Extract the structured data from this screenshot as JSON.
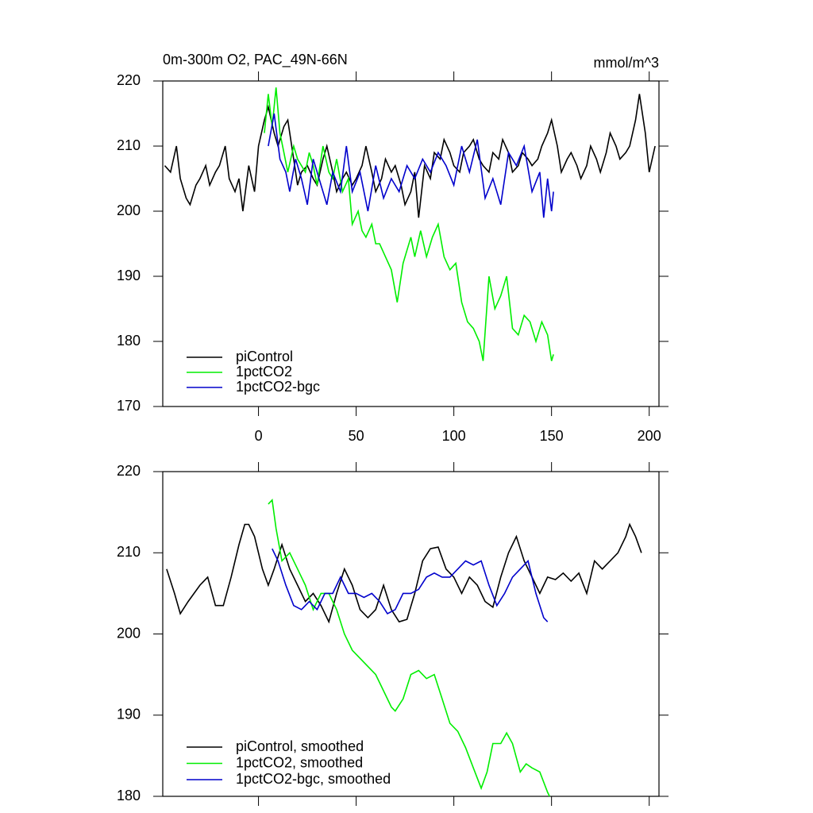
{
  "chart_data": [
    {
      "type": "line",
      "title": "0m-300m O2, PAC_49N-66N",
      "units": "mmol/m^3",
      "xlim": [
        -49,
        205
      ],
      "xticks": [
        0,
        50,
        100,
        150,
        200
      ],
      "ylim": [
        170,
        220
      ],
      "yticks": [
        170,
        180,
        190,
        200,
        210,
        220
      ],
      "legend": "lower left",
      "series": [
        {
          "name": "piControl",
          "color": "#000000",
          "x": [
            -48,
            -45,
            -42,
            -40,
            -37,
            -35,
            -32,
            -30,
            -27,
            -25,
            -22,
            -20,
            -17,
            -15,
            -12,
            -10,
            -8,
            -5,
            -2,
            0,
            3,
            5,
            8,
            10,
            13,
            15,
            18,
            20,
            22,
            25,
            28,
            30,
            33,
            35,
            38,
            40,
            43,
            45,
            48,
            50,
            53,
            55,
            58,
            60,
            63,
            65,
            68,
            70,
            73,
            75,
            78,
            80,
            82,
            85,
            88,
            90,
            93,
            95,
            98,
            100,
            103,
            105,
            108,
            110,
            113,
            115,
            118,
            120,
            123,
            125,
            128,
            130,
            133,
            135,
            138,
            140,
            143,
            145,
            148,
            150,
            153,
            155,
            158,
            160,
            163,
            165,
            168,
            170,
            173,
            175,
            178,
            180,
            183,
            185,
            188,
            190,
            193,
            195,
            198,
            200,
            203
          ],
          "values": [
            207,
            206,
            210,
            205,
            202,
            201,
            204,
            205,
            207,
            204,
            206,
            207,
            210,
            205,
            203,
            205,
            200,
            207,
            203,
            210,
            214,
            216,
            212,
            210,
            213,
            214,
            208,
            204,
            206,
            207,
            205,
            204,
            208,
            210,
            206,
            203,
            205,
            206,
            204,
            205,
            207,
            210,
            206,
            203,
            205,
            208,
            206,
            207,
            204,
            201,
            203,
            206,
            199,
            207,
            205,
            209,
            208,
            211,
            209,
            207,
            206,
            209,
            210,
            211,
            208,
            207,
            206,
            209,
            208,
            211,
            209,
            206,
            207,
            209,
            208,
            207,
            208,
            210,
            212,
            214,
            210,
            206,
            208,
            209,
            207,
            205,
            207,
            210,
            208,
            206,
            209,
            212,
            210,
            208,
            209,
            210,
            214,
            218,
            212,
            206,
            210
          ]
        },
        {
          "name": "1pctCO2",
          "color": "#00ee00",
          "x": [
            3,
            5,
            7,
            9,
            11,
            13,
            15,
            18,
            20,
            22,
            24,
            26,
            28,
            30,
            33,
            36,
            38,
            40,
            43,
            46,
            48,
            51,
            53,
            55,
            58,
            60,
            62,
            65,
            68,
            71,
            74,
            76,
            78,
            80,
            83,
            86,
            89,
            92,
            95,
            98,
            101,
            104,
            107,
            110,
            113,
            115,
            118,
            121,
            124,
            127,
            130,
            133,
            136,
            139,
            142,
            145,
            148,
            150,
            151
          ],
          "values": [
            212,
            218,
            213,
            219,
            212,
            209,
            206,
            210,
            208,
            207,
            206,
            209,
            207,
            204,
            210,
            206,
            205,
            208,
            203,
            205,
            198,
            200,
            197,
            196,
            198,
            195,
            195,
            193,
            191,
            186,
            192,
            194,
            196,
            193,
            197,
            193,
            196,
            198,
            193,
            191,
            192,
            186,
            183,
            182,
            180,
            177,
            190,
            185,
            187,
            190,
            182,
            181,
            184,
            183,
            180,
            183,
            181,
            177,
            178
          ]
        },
        {
          "name": "1pctCO2-bgc",
          "color": "#0000cc",
          "x": [
            5,
            8,
            11,
            14,
            16,
            19,
            22,
            25,
            28,
            31,
            35,
            38,
            42,
            45,
            48,
            52,
            56,
            60,
            64,
            68,
            72,
            76,
            80,
            84,
            88,
            92,
            96,
            100,
            104,
            108,
            112,
            116,
            120,
            124,
            128,
            132,
            136,
            140,
            144,
            146,
            148,
            150,
            151
          ],
          "values": [
            210,
            215,
            208,
            206,
            203,
            208,
            205,
            201,
            208,
            205,
            201,
            206,
            203,
            210,
            203,
            206,
            200,
            207,
            202,
            205,
            203,
            207,
            205,
            208,
            206,
            209,
            207,
            204,
            210,
            206,
            211,
            202,
            205,
            201,
            209,
            207,
            210,
            203,
            206,
            199,
            205,
            200,
            203
          ]
        }
      ]
    },
    {
      "type": "line",
      "xlim": [
        -49,
        205
      ],
      "xticks": [
        0,
        50,
        100,
        150,
        200
      ],
      "ylim": [
        180,
        220
      ],
      "yticks": [
        180,
        190,
        200,
        210,
        220
      ],
      "legend": "lower left",
      "series": [
        {
          "name": "piControl, smoothed",
          "color": "#000000",
          "x": [
            -47,
            -43,
            -40,
            -36,
            -30,
            -26,
            -22,
            -18,
            -14,
            -10,
            -7,
            -5,
            -2,
            2,
            5,
            8,
            12,
            16,
            20,
            24,
            28,
            32,
            36,
            40,
            44,
            48,
            52,
            56,
            60,
            64,
            68,
            72,
            76,
            80,
            84,
            88,
            92,
            96,
            100,
            104,
            108,
            112,
            116,
            120,
            124,
            128,
            132,
            136,
            140,
            144,
            148,
            152,
            156,
            160,
            164,
            168,
            172,
            176,
            180,
            184,
            188,
            190,
            193,
            196
          ],
          "values": [
            208,
            205,
            202.5,
            204,
            206,
            207,
            203.5,
            203.5,
            207,
            211,
            213.5,
            213.5,
            212,
            208,
            206,
            208,
            211,
            208,
            206,
            204,
            205,
            203.5,
            201.5,
            205,
            208,
            206,
            203,
            202,
            203,
            206,
            203,
            201.5,
            201.8,
            205,
            209,
            210.5,
            210.7,
            208,
            207,
            205,
            207,
            206,
            204,
            203.3,
            207,
            210,
            212,
            209,
            207,
            205,
            207,
            206.7,
            207.5,
            206.5,
            207.5,
            205,
            209,
            208,
            209,
            210,
            212,
            213.5,
            212,
            210
          ]
        },
        {
          "name": "1pctCO2, smoothed",
          "color": "#00ee00",
          "x": [
            5,
            7,
            9,
            12,
            16,
            20,
            24,
            28,
            32,
            36,
            40,
            44,
            48,
            52,
            56,
            60,
            64,
            68,
            70,
            74,
            78,
            82,
            86,
            90,
            94,
            98,
            102,
            106,
            110,
            114,
            117,
            120,
            124,
            127,
            130,
            134,
            137,
            140,
            144,
            148,
            149
          ],
          "values": [
            216,
            216.5,
            213,
            209,
            210,
            208,
            206,
            203,
            205,
            205,
            203,
            200,
            198,
            197,
            196,
            195,
            193,
            191,
            190.5,
            192,
            195,
            195.5,
            194.5,
            195,
            192,
            189,
            188,
            186,
            183.5,
            181,
            183,
            186.5,
            186.5,
            187.8,
            186.5,
            183,
            184,
            183.5,
            183,
            180.5,
            180
          ]
        },
        {
          "name": "1pctCO2-bgc, smoothed",
          "color": "#0000cc",
          "x": [
            7,
            10,
            14,
            18,
            22,
            26,
            30,
            34,
            38,
            42,
            46,
            50,
            54,
            58,
            62,
            66,
            70,
            74,
            78,
            82,
            86,
            90,
            94,
            98,
            102,
            106,
            110,
            114,
            118,
            122,
            126,
            130,
            134,
            138,
            142,
            146,
            148
          ],
          "values": [
            210.5,
            209,
            206,
            203.5,
            203,
            204,
            203,
            205,
            205,
            207,
            205,
            205,
            204.5,
            205,
            204,
            202.5,
            203,
            205,
            205,
            205.5,
            207,
            207.5,
            207,
            207,
            208,
            209,
            208.5,
            209,
            206,
            203.5,
            205,
            207,
            208,
            209,
            205,
            202,
            201.5
          ]
        }
      ]
    }
  ]
}
